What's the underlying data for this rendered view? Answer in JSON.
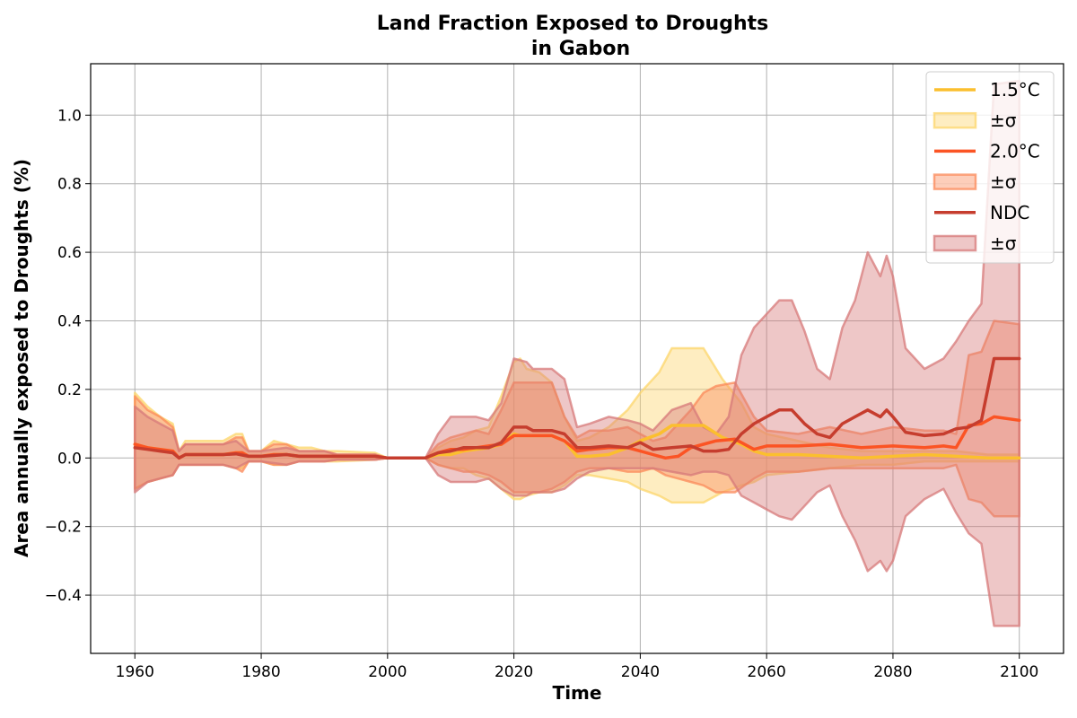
{
  "chart_data": {
    "type": "area",
    "title_lines": [
      "Land Fraction Exposed to Droughts",
      "in Gabon"
    ],
    "xlabel": "Time",
    "ylabel": "Area annually exposed to Droughts (%)",
    "xlim": [
      1953,
      2107
    ],
    "ylim": [
      -0.57,
      1.15
    ],
    "x_ticks": [
      1960,
      1980,
      2000,
      2020,
      2040,
      2060,
      2080,
      2100
    ],
    "y_ticks": [
      -0.4,
      -0.2,
      0.0,
      0.2,
      0.4,
      0.6,
      0.8,
      1.0
    ],
    "y_tick_labels": [
      "−0.4",
      "−0.2",
      "0.0",
      "0.2",
      "0.4",
      "0.6",
      "0.8",
      "1.0"
    ],
    "grid": true,
    "legend_position": "top-right",
    "legend": [
      {
        "label": "1.5°C",
        "kind": "line",
        "series": 0
      },
      {
        "label": "±σ",
        "kind": "band",
        "series": 0
      },
      {
        "label": "2.0°C",
        "kind": "line",
        "series": 1
      },
      {
        "label": "±σ",
        "kind": "band",
        "series": 1
      },
      {
        "label": "NDC",
        "kind": "line",
        "series": 2
      },
      {
        "label": "±σ",
        "kind": "band",
        "series": 2
      }
    ],
    "series": [
      {
        "name": "1.5°C",
        "color": "#fbbf2e",
        "band_color": "#fcd56b",
        "points": [
          [
            1960,
            0.04,
            0.19,
            -0.09
          ],
          [
            1962,
            0.03,
            0.15,
            -0.07
          ],
          [
            1964,
            0.025,
            0.12,
            -0.06
          ],
          [
            1966,
            0.02,
            0.1,
            -0.05
          ],
          [
            1967,
            0.0,
            0.02,
            -0.02
          ],
          [
            1968,
            0.01,
            0.05,
            -0.02
          ],
          [
            1970,
            0.01,
            0.05,
            -0.02
          ],
          [
            1974,
            0.01,
            0.05,
            -0.02
          ],
          [
            1976,
            0.015,
            0.07,
            -0.03
          ],
          [
            1977,
            0.015,
            0.07,
            -0.03
          ],
          [
            1978,
            0.005,
            0.02,
            -0.01
          ],
          [
            1980,
            0.005,
            0.02,
            -0.01
          ],
          [
            1982,
            0.01,
            0.05,
            -0.02
          ],
          [
            1984,
            0.01,
            0.04,
            -0.02
          ],
          [
            1986,
            0.005,
            0.03,
            -0.01
          ],
          [
            1988,
            0.005,
            0.03,
            -0.01
          ],
          [
            1990,
            0.005,
            0.02,
            -0.01
          ],
          [
            1992,
            0.005,
            0.02,
            -0.01
          ],
          [
            1998,
            0.005,
            0.015,
            -0.005
          ],
          [
            2000,
            0.0,
            0.0,
            0.0
          ],
          [
            2006,
            0.0,
            0.0,
            0.0
          ],
          [
            2008,
            0.01,
            0.03,
            -0.02
          ],
          [
            2010,
            0.01,
            0.05,
            -0.03
          ],
          [
            2012,
            0.02,
            0.06,
            -0.03
          ],
          [
            2014,
            0.025,
            0.08,
            -0.05
          ],
          [
            2016,
            0.03,
            0.09,
            -0.06
          ],
          [
            2018,
            0.04,
            0.18,
            -0.09
          ],
          [
            2020,
            0.07,
            0.28,
            -0.12
          ],
          [
            2021,
            0.065,
            0.29,
            -0.12
          ],
          [
            2022,
            0.065,
            0.26,
            -0.11
          ],
          [
            2024,
            0.065,
            0.25,
            -0.1
          ],
          [
            2026,
            0.065,
            0.22,
            -0.1
          ],
          [
            2028,
            0.05,
            0.12,
            -0.08
          ],
          [
            2030,
            0.005,
            0.05,
            -0.05
          ],
          [
            2032,
            0.005,
            0.06,
            -0.05
          ],
          [
            2035,
            0.01,
            0.09,
            -0.06
          ],
          [
            2038,
            0.03,
            0.14,
            -0.07
          ],
          [
            2040,
            0.05,
            0.19,
            -0.09
          ],
          [
            2043,
            0.07,
            0.25,
            -0.11
          ],
          [
            2045,
            0.095,
            0.32,
            -0.13
          ],
          [
            2047,
            0.095,
            0.32,
            -0.13
          ],
          [
            2050,
            0.095,
            0.32,
            -0.13
          ],
          [
            2053,
            0.06,
            0.23,
            -0.1
          ],
          [
            2056,
            0.04,
            0.16,
            -0.08
          ],
          [
            2058,
            0.02,
            0.09,
            -0.07
          ],
          [
            2060,
            0.01,
            0.07,
            -0.05
          ],
          [
            2065,
            0.01,
            0.05,
            -0.04
          ],
          [
            2070,
            0.005,
            0.03,
            -0.03
          ],
          [
            2075,
            0.0,
            0.02,
            -0.02
          ],
          [
            2080,
            0.005,
            0.02,
            -0.02
          ],
          [
            2085,
            0.01,
            0.02,
            -0.01
          ],
          [
            2090,
            0.005,
            0.02,
            -0.01
          ],
          [
            2095,
            0.0,
            0.01,
            -0.01
          ],
          [
            2100,
            0.0,
            0.01,
            -0.01
          ]
        ]
      },
      {
        "name": "2.0°C",
        "color": "#fb5424",
        "band_color": "#fb8a5a",
        "points": [
          [
            1960,
            0.04,
            0.18,
            -0.09
          ],
          [
            1962,
            0.03,
            0.14,
            -0.07
          ],
          [
            1964,
            0.025,
            0.12,
            -0.06
          ],
          [
            1966,
            0.02,
            0.09,
            -0.05
          ],
          [
            1967,
            0.0,
            0.02,
            -0.02
          ],
          [
            1968,
            0.01,
            0.04,
            -0.02
          ],
          [
            1970,
            0.01,
            0.04,
            -0.02
          ],
          [
            1974,
            0.01,
            0.04,
            -0.02
          ],
          [
            1976,
            0.015,
            0.06,
            -0.03
          ],
          [
            1977,
            0.015,
            0.06,
            -0.04
          ],
          [
            1978,
            0.005,
            0.02,
            -0.01
          ],
          [
            1980,
            0.005,
            0.02,
            -0.01
          ],
          [
            1982,
            0.01,
            0.04,
            -0.02
          ],
          [
            1984,
            0.01,
            0.04,
            -0.02
          ],
          [
            1986,
            0.005,
            0.02,
            -0.01
          ],
          [
            1988,
            0.005,
            0.02,
            -0.01
          ],
          [
            1990,
            0.005,
            0.02,
            -0.01
          ],
          [
            1992,
            0.005,
            0.01,
            -0.005
          ],
          [
            1998,
            0.005,
            0.01,
            -0.005
          ],
          [
            2000,
            0.0,
            0.0,
            0.0
          ],
          [
            2006,
            0.0,
            0.0,
            0.0
          ],
          [
            2008,
            0.015,
            0.04,
            -0.02
          ],
          [
            2010,
            0.025,
            0.06,
            -0.03
          ],
          [
            2012,
            0.025,
            0.07,
            -0.04
          ],
          [
            2014,
            0.03,
            0.08,
            -0.04
          ],
          [
            2016,
            0.035,
            0.07,
            -0.05
          ],
          [
            2018,
            0.04,
            0.14,
            -0.07
          ],
          [
            2020,
            0.065,
            0.22,
            -0.1
          ],
          [
            2022,
            0.065,
            0.22,
            -0.1
          ],
          [
            2024,
            0.065,
            0.22,
            -0.1
          ],
          [
            2026,
            0.065,
            0.22,
            -0.09
          ],
          [
            2028,
            0.05,
            0.12,
            -0.07
          ],
          [
            2030,
            0.02,
            0.06,
            -0.04
          ],
          [
            2032,
            0.025,
            0.08,
            -0.03
          ],
          [
            2035,
            0.03,
            0.08,
            -0.03
          ],
          [
            2038,
            0.03,
            0.09,
            -0.04
          ],
          [
            2040,
            0.02,
            0.07,
            -0.04
          ],
          [
            2042,
            0.01,
            0.05,
            -0.03
          ],
          [
            2044,
            0.0,
            0.06,
            -0.05
          ],
          [
            2046,
            0.005,
            0.1,
            -0.06
          ],
          [
            2048,
            0.03,
            0.14,
            -0.07
          ],
          [
            2050,
            0.04,
            0.19,
            -0.08
          ],
          [
            2052,
            0.05,
            0.21,
            -0.1
          ],
          [
            2055,
            0.055,
            0.22,
            -0.1
          ],
          [
            2058,
            0.025,
            0.12,
            -0.06
          ],
          [
            2060,
            0.035,
            0.08,
            -0.04
          ],
          [
            2065,
            0.035,
            0.07,
            -0.04
          ],
          [
            2070,
            0.04,
            0.09,
            -0.03
          ],
          [
            2075,
            0.03,
            0.07,
            -0.03
          ],
          [
            2080,
            0.035,
            0.09,
            -0.03
          ],
          [
            2085,
            0.03,
            0.08,
            -0.03
          ],
          [
            2088,
            0.035,
            0.08,
            -0.03
          ],
          [
            2090,
            0.03,
            0.07,
            -0.02
          ],
          [
            2092,
            0.095,
            0.3,
            -0.12
          ],
          [
            2094,
            0.1,
            0.31,
            -0.13
          ],
          [
            2096,
            0.12,
            0.4,
            -0.17
          ],
          [
            2100,
            0.11,
            0.39,
            -0.17
          ]
        ]
      },
      {
        "name": "NDC",
        "color": "#c63d2e",
        "band_color": "#d7797a",
        "points": [
          [
            1960,
            0.03,
            0.15,
            -0.1
          ],
          [
            1962,
            0.025,
            0.12,
            -0.07
          ],
          [
            1964,
            0.02,
            0.1,
            -0.06
          ],
          [
            1966,
            0.015,
            0.08,
            -0.05
          ],
          [
            1967,
            0.0,
            0.02,
            -0.02
          ],
          [
            1968,
            0.01,
            0.04,
            -0.02
          ],
          [
            1970,
            0.01,
            0.04,
            -0.02
          ],
          [
            1974,
            0.01,
            0.04,
            -0.02
          ],
          [
            1976,
            0.012,
            0.05,
            -0.03
          ],
          [
            1978,
            0.005,
            0.02,
            -0.01
          ],
          [
            1980,
            0.005,
            0.02,
            -0.01
          ],
          [
            1984,
            0.01,
            0.03,
            -0.02
          ],
          [
            1986,
            0.005,
            0.02,
            -0.01
          ],
          [
            1990,
            0.005,
            0.02,
            -0.01
          ],
          [
            1992,
            0.005,
            0.01,
            -0.005
          ],
          [
            1998,
            0.005,
            0.01,
            -0.005
          ],
          [
            2000,
            0.0,
            0.0,
            0.0
          ],
          [
            2006,
            0.0,
            0.0,
            0.0
          ],
          [
            2008,
            0.015,
            0.07,
            -0.05
          ],
          [
            2010,
            0.02,
            0.12,
            -0.07
          ],
          [
            2012,
            0.03,
            0.12,
            -0.07
          ],
          [
            2014,
            0.03,
            0.12,
            -0.07
          ],
          [
            2016,
            0.03,
            0.11,
            -0.06
          ],
          [
            2018,
            0.045,
            0.16,
            -0.09
          ],
          [
            2020,
            0.09,
            0.29,
            -0.11
          ],
          [
            2022,
            0.09,
            0.28,
            -0.11
          ],
          [
            2023,
            0.08,
            0.26,
            -0.1
          ],
          [
            2026,
            0.08,
            0.26,
            -0.1
          ],
          [
            2028,
            0.07,
            0.23,
            -0.09
          ],
          [
            2030,
            0.03,
            0.09,
            -0.06
          ],
          [
            2032,
            0.03,
            0.1,
            -0.04
          ],
          [
            2035,
            0.035,
            0.12,
            -0.03
          ],
          [
            2038,
            0.03,
            0.11,
            -0.03
          ],
          [
            2040,
            0.045,
            0.1,
            -0.03
          ],
          [
            2042,
            0.025,
            0.08,
            -0.03
          ],
          [
            2045,
            0.03,
            0.14,
            -0.04
          ],
          [
            2048,
            0.035,
            0.16,
            -0.05
          ],
          [
            2050,
            0.02,
            0.09,
            -0.04
          ],
          [
            2052,
            0.02,
            0.07,
            -0.04
          ],
          [
            2054,
            0.025,
            0.12,
            -0.05
          ],
          [
            2056,
            0.07,
            0.3,
            -0.11
          ],
          [
            2058,
            0.1,
            0.38,
            -0.13
          ],
          [
            2060,
            0.12,
            0.42,
            -0.15
          ],
          [
            2062,
            0.14,
            0.46,
            -0.17
          ],
          [
            2064,
            0.14,
            0.46,
            -0.18
          ],
          [
            2066,
            0.1,
            0.37,
            -0.14
          ],
          [
            2068,
            0.07,
            0.26,
            -0.1
          ],
          [
            2070,
            0.06,
            0.23,
            -0.08
          ],
          [
            2072,
            0.1,
            0.38,
            -0.17
          ],
          [
            2074,
            0.12,
            0.46,
            -0.24
          ],
          [
            2076,
            0.14,
            0.6,
            -0.33
          ],
          [
            2078,
            0.12,
            0.53,
            -0.3
          ],
          [
            2079,
            0.14,
            0.59,
            -0.33
          ],
          [
            2080,
            0.12,
            0.53,
            -0.3
          ],
          [
            2082,
            0.075,
            0.32,
            -0.17
          ],
          [
            2085,
            0.065,
            0.26,
            -0.12
          ],
          [
            2088,
            0.07,
            0.29,
            -0.09
          ],
          [
            2090,
            0.085,
            0.34,
            -0.16
          ],
          [
            2092,
            0.09,
            0.4,
            -0.22
          ],
          [
            2094,
            0.11,
            0.45,
            -0.25
          ],
          [
            2096,
            0.29,
            1.09,
            -0.49
          ],
          [
            2100,
            0.29,
            1.1,
            -0.49
          ]
        ]
      }
    ]
  }
}
